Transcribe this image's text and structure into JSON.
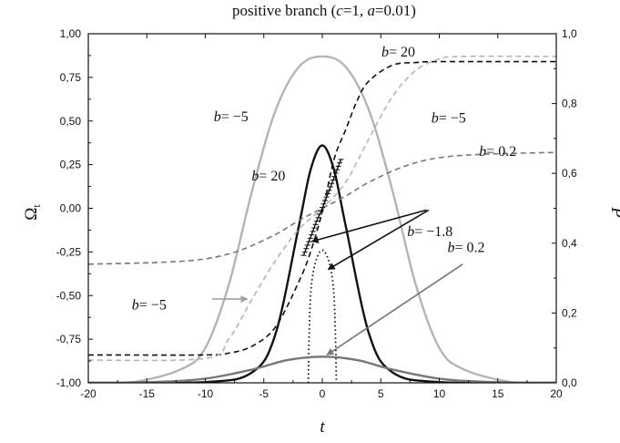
{
  "chart_data": {
    "type": "line",
    "title": {
      "prefix": "positive branch (",
      "c_var": "c",
      "c_val": "=1, ",
      "a_var": "a",
      "a_val": "=0.01)"
    },
    "xlabel": "t",
    "ylabel": {
      "main": "Ω",
      "sub": "t"
    },
    "y2label": "P",
    "xlim": [
      -20,
      20
    ],
    "ylim": [
      -1.0,
      1.0
    ],
    "y2lim": [
      0.0,
      1.0
    ],
    "x_ticks": [
      "-20",
      "-15",
      "-10",
      "-5",
      "0",
      "5",
      "10",
      "15",
      "20"
    ],
    "y_ticks": [
      "-1,00",
      "-0,75",
      "-0,50",
      "-0,25",
      "0,00",
      "0,25",
      "0,50",
      "0,75",
      "1,00"
    ],
    "y2_ticks": [
      "0,0",
      "0,2",
      "0,4",
      "0,6",
      "0,8",
      "1,0"
    ],
    "grid": false,
    "series": [
      {
        "label": "b= -5",
        "axis": "right",
        "style": "solid",
        "color": "#b4b4b4",
        "points": [
          [
            -20,
            0.0
          ],
          [
            -16,
            0.003
          ],
          [
            -12,
            0.04
          ],
          [
            -10,
            0.1
          ],
          [
            -8,
            0.28
          ],
          [
            -6,
            0.55
          ],
          [
            -4,
            0.78
          ],
          [
            -2,
            0.905
          ],
          [
            0,
            0.935
          ],
          [
            2,
            0.905
          ],
          [
            4,
            0.78
          ],
          [
            6,
            0.55
          ],
          [
            8,
            0.28
          ],
          [
            10,
            0.1
          ],
          [
            12,
            0.04
          ],
          [
            16,
            0.003
          ],
          [
            20,
            0.0
          ]
        ]
      },
      {
        "label": "b= 20",
        "axis": "right",
        "style": "solid",
        "color": "#111111",
        "points": [
          [
            -20,
            0.0
          ],
          [
            -10,
            0.002
          ],
          [
            -6,
            0.03
          ],
          [
            -4,
            0.14
          ],
          [
            -2,
            0.45
          ],
          [
            -1,
            0.61
          ],
          [
            0,
            0.68
          ],
          [
            1,
            0.61
          ],
          [
            2,
            0.45
          ],
          [
            4,
            0.14
          ],
          [
            6,
            0.03
          ],
          [
            10,
            0.002
          ],
          [
            20,
            0.0
          ]
        ]
      },
      {
        "label": "b= -1.8",
        "axis": "right",
        "style": "dotted",
        "color": "#111111",
        "points": [
          [
            -1.2,
            0.0
          ],
          [
            -1.15,
            0.1
          ],
          [
            -1.0,
            0.25
          ],
          [
            -0.7,
            0.33
          ],
          [
            -0.3,
            0.37
          ],
          [
            0,
            0.38
          ],
          [
            0.3,
            0.37
          ],
          [
            0.7,
            0.33
          ],
          [
            1.0,
            0.25
          ],
          [
            1.15,
            0.1
          ],
          [
            1.2,
            0.0
          ]
        ]
      },
      {
        "label": "b= 0.2",
        "axis": "right",
        "style": "solid",
        "color": "#777777",
        "points": [
          [
            -20,
            0.0
          ],
          [
            -14,
            0.003
          ],
          [
            -10,
            0.012
          ],
          [
            -6,
            0.038
          ],
          [
            -3,
            0.065
          ],
          [
            0,
            0.075
          ],
          [
            3,
            0.065
          ],
          [
            6,
            0.038
          ],
          [
            10,
            0.012
          ],
          [
            14,
            0.003
          ],
          [
            20,
            0.0
          ]
        ]
      },
      {
        "label": "b= 20",
        "axis": "left",
        "style": "dashed",
        "color": "#111111",
        "points": [
          [
            -20,
            -0.84
          ],
          [
            -10,
            -0.84
          ],
          [
            -8,
            -0.83
          ],
          [
            -6,
            -0.79
          ],
          [
            -4,
            -0.68
          ],
          [
            -2,
            -0.42
          ],
          [
            -1,
            -0.25
          ],
          [
            0,
            -0.02
          ],
          [
            1,
            0.28
          ],
          [
            2,
            0.45
          ],
          [
            3,
            0.62
          ],
          [
            4,
            0.73
          ],
          [
            6,
            0.82
          ],
          [
            8,
            0.835
          ],
          [
            10,
            0.84
          ],
          [
            20,
            0.84
          ]
        ]
      },
      {
        "label": "b= -5",
        "axis": "left",
        "style": "dashed",
        "color": "#b4b4b4",
        "points": [
          [
            -20,
            -0.87
          ],
          [
            -10,
            -0.86
          ],
          [
            -8,
            -0.75
          ],
          [
            -6,
            -0.52
          ],
          [
            -4,
            -0.3
          ],
          [
            -2,
            -0.12
          ],
          [
            0,
            0.0
          ],
          [
            2,
            0.15
          ],
          [
            4,
            0.4
          ],
          [
            6,
            0.64
          ],
          [
            8,
            0.79
          ],
          [
            10,
            0.855
          ],
          [
            12,
            0.87
          ],
          [
            20,
            0.87
          ]
        ]
      },
      {
        "label": "b= 0.2",
        "axis": "left",
        "style": "dashed",
        "color": "#777777",
        "points": [
          [
            -20,
            -0.32
          ],
          [
            -14,
            -0.31
          ],
          [
            -10,
            -0.29
          ],
          [
            -7,
            -0.24
          ],
          [
            -4,
            -0.15
          ],
          [
            -2,
            -0.07
          ],
          [
            0,
            0.0
          ],
          [
            2,
            0.07
          ],
          [
            4,
            0.15
          ],
          [
            7,
            0.24
          ],
          [
            10,
            0.29
          ],
          [
            14,
            0.31
          ],
          [
            20,
            0.32
          ]
        ]
      },
      {
        "label": "b= -1.8",
        "axis": "left",
        "style": "crossed",
        "color": "#111111",
        "points": [
          [
            -1.6,
            -0.27
          ],
          [
            -1.2,
            -0.2
          ],
          [
            -0.8,
            -0.13
          ],
          [
            -0.4,
            -0.06
          ],
          [
            0,
            0.0
          ],
          [
            0.4,
            0.07
          ],
          [
            0.8,
            0.14
          ],
          [
            1.2,
            0.21
          ],
          [
            1.6,
            0.28
          ]
        ]
      }
    ],
    "annotations": [
      {
        "id": "b-neg5-solid",
        "text": "b= -5",
        "x": -7.8,
        "y": 0.5,
        "axis": "left"
      },
      {
        "id": "b-20-top",
        "text": "b= 20",
        "x": 6.5,
        "y": 0.87,
        "axis": "left"
      },
      {
        "id": "b-neg5-dashed",
        "text": "b= -5",
        "x": 10.8,
        "y": 0.49,
        "axis": "left"
      },
      {
        "id": "b-02-dashed",
        "text": "b= 0.2",
        "x": 15.0,
        "y": 0.3,
        "axis": "left"
      },
      {
        "id": "b-20-solid",
        "text": "b= 20",
        "x": -4.6,
        "y": 0.16,
        "axis": "left"
      },
      {
        "id": "b-neg18",
        "text": "b= -1.8",
        "x": 9.2,
        "y": -0.16,
        "axis": "left"
      },
      {
        "id": "b-02-solid",
        "text": "b= 0.2",
        "x": 12.3,
        "y": -0.25,
        "axis": "left"
      },
      {
        "id": "b-neg5-bottom",
        "text": "b= -5",
        "x": -14.8,
        "y": -0.58,
        "axis": "left"
      }
    ],
    "arrows": [
      {
        "id": "arrow-b-neg5",
        "from": [
          -9.4,
          -0.52
        ],
        "to": [
          -6.4,
          -0.52
        ],
        "color": "#a0a0a0"
      },
      {
        "id": "arrow-b-neg18-1",
        "from": [
          8.9,
          -0.01
        ],
        "to": [
          -0.9,
          -0.19
        ],
        "color": "#111111"
      },
      {
        "id": "arrow-b-neg18-2",
        "from": [
          9.1,
          -0.01
        ],
        "to": [
          0.5,
          -0.35
        ],
        "color": "#111111"
      },
      {
        "id": "arrow-b-02",
        "from": [
          12.0,
          -0.32
        ],
        "to": [
          0.4,
          -0.84
        ],
        "color": "#777777"
      }
    ]
  }
}
